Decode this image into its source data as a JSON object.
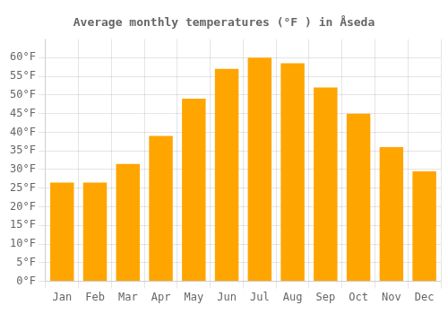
{
  "chart_data": {
    "type": "bar",
    "title": "Average monthly temperatures (°F ) in Åseda",
    "categories": [
      "Jan",
      "Feb",
      "Mar",
      "Apr",
      "May",
      "Jun",
      "Jul",
      "Aug",
      "Sep",
      "Oct",
      "Nov",
      "Dec"
    ],
    "values": [
      26.5,
      26.5,
      31.5,
      39.0,
      49.0,
      57.0,
      60.0,
      58.5,
      52.0,
      45.0,
      36.0,
      29.5
    ],
    "color": "#FFA500",
    "ylim": [
      0,
      65
    ],
    "yticks": [
      {
        "value": 0,
        "label": "0°F"
      },
      {
        "value": 5,
        "label": "5°F"
      },
      {
        "value": 10,
        "label": "10°F"
      },
      {
        "value": 15,
        "label": "15°F"
      },
      {
        "value": 20,
        "label": "20°F"
      },
      {
        "value": 25,
        "label": "25°F"
      },
      {
        "value": 30,
        "label": "30°F"
      },
      {
        "value": 35,
        "label": "35°F"
      },
      {
        "value": 40,
        "label": "40°F"
      },
      {
        "value": 45,
        "label": "45°F"
      },
      {
        "value": 50,
        "label": "50°F"
      },
      {
        "value": 55,
        "label": "55°F"
      },
      {
        "value": 60,
        "label": "60°F"
      }
    ],
    "grid": true
  }
}
